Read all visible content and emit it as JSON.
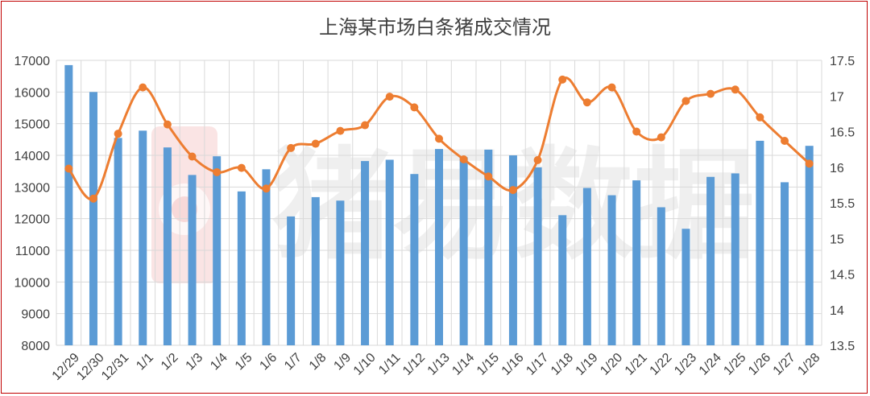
{
  "chart_data": {
    "type": "bar+line",
    "title": "上海某市场白条猪成交情况",
    "categories": [
      "12/29",
      "12/30",
      "12/31",
      "1/1",
      "1/2",
      "1/3",
      "1/4",
      "1/5",
      "1/6",
      "1/7",
      "1/8",
      "1/9",
      "1/10",
      "1/11",
      "1/12",
      "1/13",
      "1/14",
      "1/15",
      "1/16",
      "1/17",
      "1/18",
      "1/19",
      "1/20",
      "1/21",
      "1/22",
      "1/23",
      "1/24",
      "1/25",
      "1/26",
      "1/27",
      "1/28"
    ],
    "series": [
      {
        "kind": "bar",
        "axis": "left",
        "color": "#5b9bd5",
        "values": [
          16850,
          16000,
          14550,
          14780,
          14250,
          13380,
          13970,
          12860,
          13560,
          12070,
          12680,
          12570,
          13820,
          13860,
          13410,
          14200,
          13940,
          14180,
          14000,
          13620,
          12110,
          12970,
          12740,
          13210,
          12360,
          11680,
          13320,
          13430,
          14460,
          13150,
          14300
        ]
      },
      {
        "kind": "line",
        "axis": "right",
        "color": "#ed7d31",
        "values": [
          15.98,
          15.56,
          16.47,
          17.12,
          16.6,
          16.15,
          15.93,
          15.99,
          15.7,
          16.27,
          16.33,
          16.51,
          16.59,
          16.99,
          16.84,
          16.4,
          16.11,
          15.87,
          15.68,
          16.1,
          17.23,
          16.91,
          17.12,
          16.5,
          16.42,
          16.93,
          17.03,
          17.09,
          16.7,
          16.37,
          16.05
        ]
      }
    ],
    "y_left": {
      "min": 8000,
      "max": 17000,
      "ticks": [
        8000,
        9000,
        10000,
        11000,
        12000,
        13000,
        14000,
        15000,
        16000,
        17000
      ]
    },
    "y_right": {
      "min": 13.5,
      "max": 17.5,
      "ticks": [
        "13.5",
        "14",
        "14.5",
        "15",
        "15.5",
        "16",
        "16.5",
        "17",
        "17.5"
      ]
    },
    "grid": true,
    "legend": "none"
  },
  "watermark": {
    "text": "猪易数据"
  }
}
